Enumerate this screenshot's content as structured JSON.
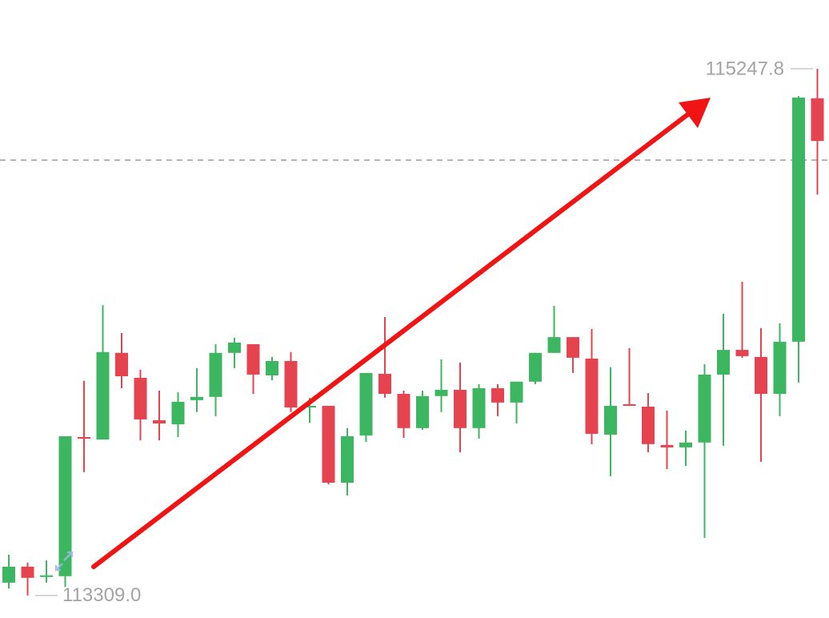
{
  "chart_data": {
    "type": "candlestick",
    "up_color": "#3db661",
    "down_color": "#e4434f",
    "ylim": [
      113226,
      115501
    ],
    "open": [
      113356,
      113415,
      113377,
      113380,
      113892,
      113883,
      114202,
      114110,
      113954,
      113939,
      114028,
      114040,
      114202,
      114234,
      114119,
      114172,
      114001,
      114007,
      113724,
      113898,
      114125,
      114051,
      113925,
      114043,
      114066,
      113925,
      114072,
      114019,
      114096,
      114202,
      114260,
      114181,
      113901,
      114013,
      114004,
      113863,
      113854,
      113872,
      114122,
      114213,
      114187,
      114051,
      114243,
      115139
    ],
    "high": [
      113459,
      113430,
      113438,
      113895,
      114099,
      114378,
      114275,
      114140,
      114063,
      114057,
      114146,
      114234,
      114258,
      114234,
      114187,
      114205,
      114037,
      114007,
      113925,
      114128,
      114334,
      114063,
      114063,
      114178,
      114166,
      114087,
      114087,
      114096,
      114202,
      114375,
      114260,
      114290,
      114149,
      114219,
      114054,
      113989,
      113916,
      114160,
      114346,
      114464,
      114293,
      114311,
      115147,
      115247.8
    ],
    "low": [
      113335,
      113309,
      113356,
      113341,
      113763,
      113883,
      114072,
      113880,
      113880,
      113892,
      113984,
      113969,
      114146,
      114051,
      114101,
      113984,
      113945,
      113718,
      113677,
      113874,
      114037,
      113889,
      113919,
      113984,
      113836,
      113886,
      113969,
      113942,
      114087,
      114202,
      114128,
      113866,
      113748,
      114007,
      113836,
      113774,
      113786,
      113521,
      113860,
      114184,
      113801,
      113969,
      114093,
      114785
    ],
    "close": [
      113415,
      113374,
      113383,
      113895,
      113886,
      114205,
      114116,
      113957,
      113942,
      114022,
      114040,
      114202,
      114240,
      114122,
      114172,
      114001,
      114007,
      113724,
      113895,
      114128,
      114051,
      113925,
      114043,
      114066,
      113925,
      114072,
      114019,
      114096,
      114202,
      114260,
      114184,
      113904,
      114007,
      114007,
      113866,
      113854,
      113872,
      114122,
      114213,
      114190,
      114051,
      114243,
      115142,
      114982
    ],
    "annotations": [
      {
        "value": 115247.8,
        "label": "115247.8"
      },
      {
        "value": 113309,
        "label": "113309.0"
      }
    ]
  }
}
